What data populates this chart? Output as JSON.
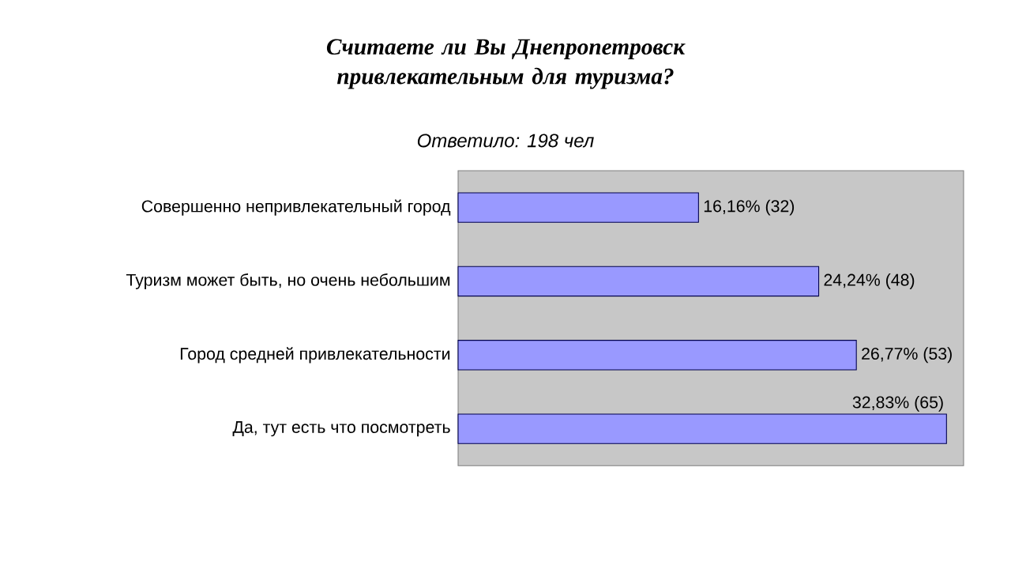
{
  "chart_data": {
    "type": "bar",
    "orientation": "horizontal",
    "title": "Считаете ли Вы Днепропетровск привлекательным для туризма?",
    "subtitle": "Ответило: 198 чел",
    "categories": [
      "Совершенно непривлекательный город",
      "Туризм может быть, но очень небольшим",
      "Город средней привлекательности",
      "Да, тут есть что посмотреть"
    ],
    "values": [
      16.16,
      24.24,
      26.77,
      32.83
    ],
    "value_labels": [
      "16,16% (32)",
      "24,24% (48)",
      "26,77% (53)",
      "32,83% (65)"
    ],
    "color": "#9999ff",
    "tick_labels": "y",
    "grid": false
  }
}
